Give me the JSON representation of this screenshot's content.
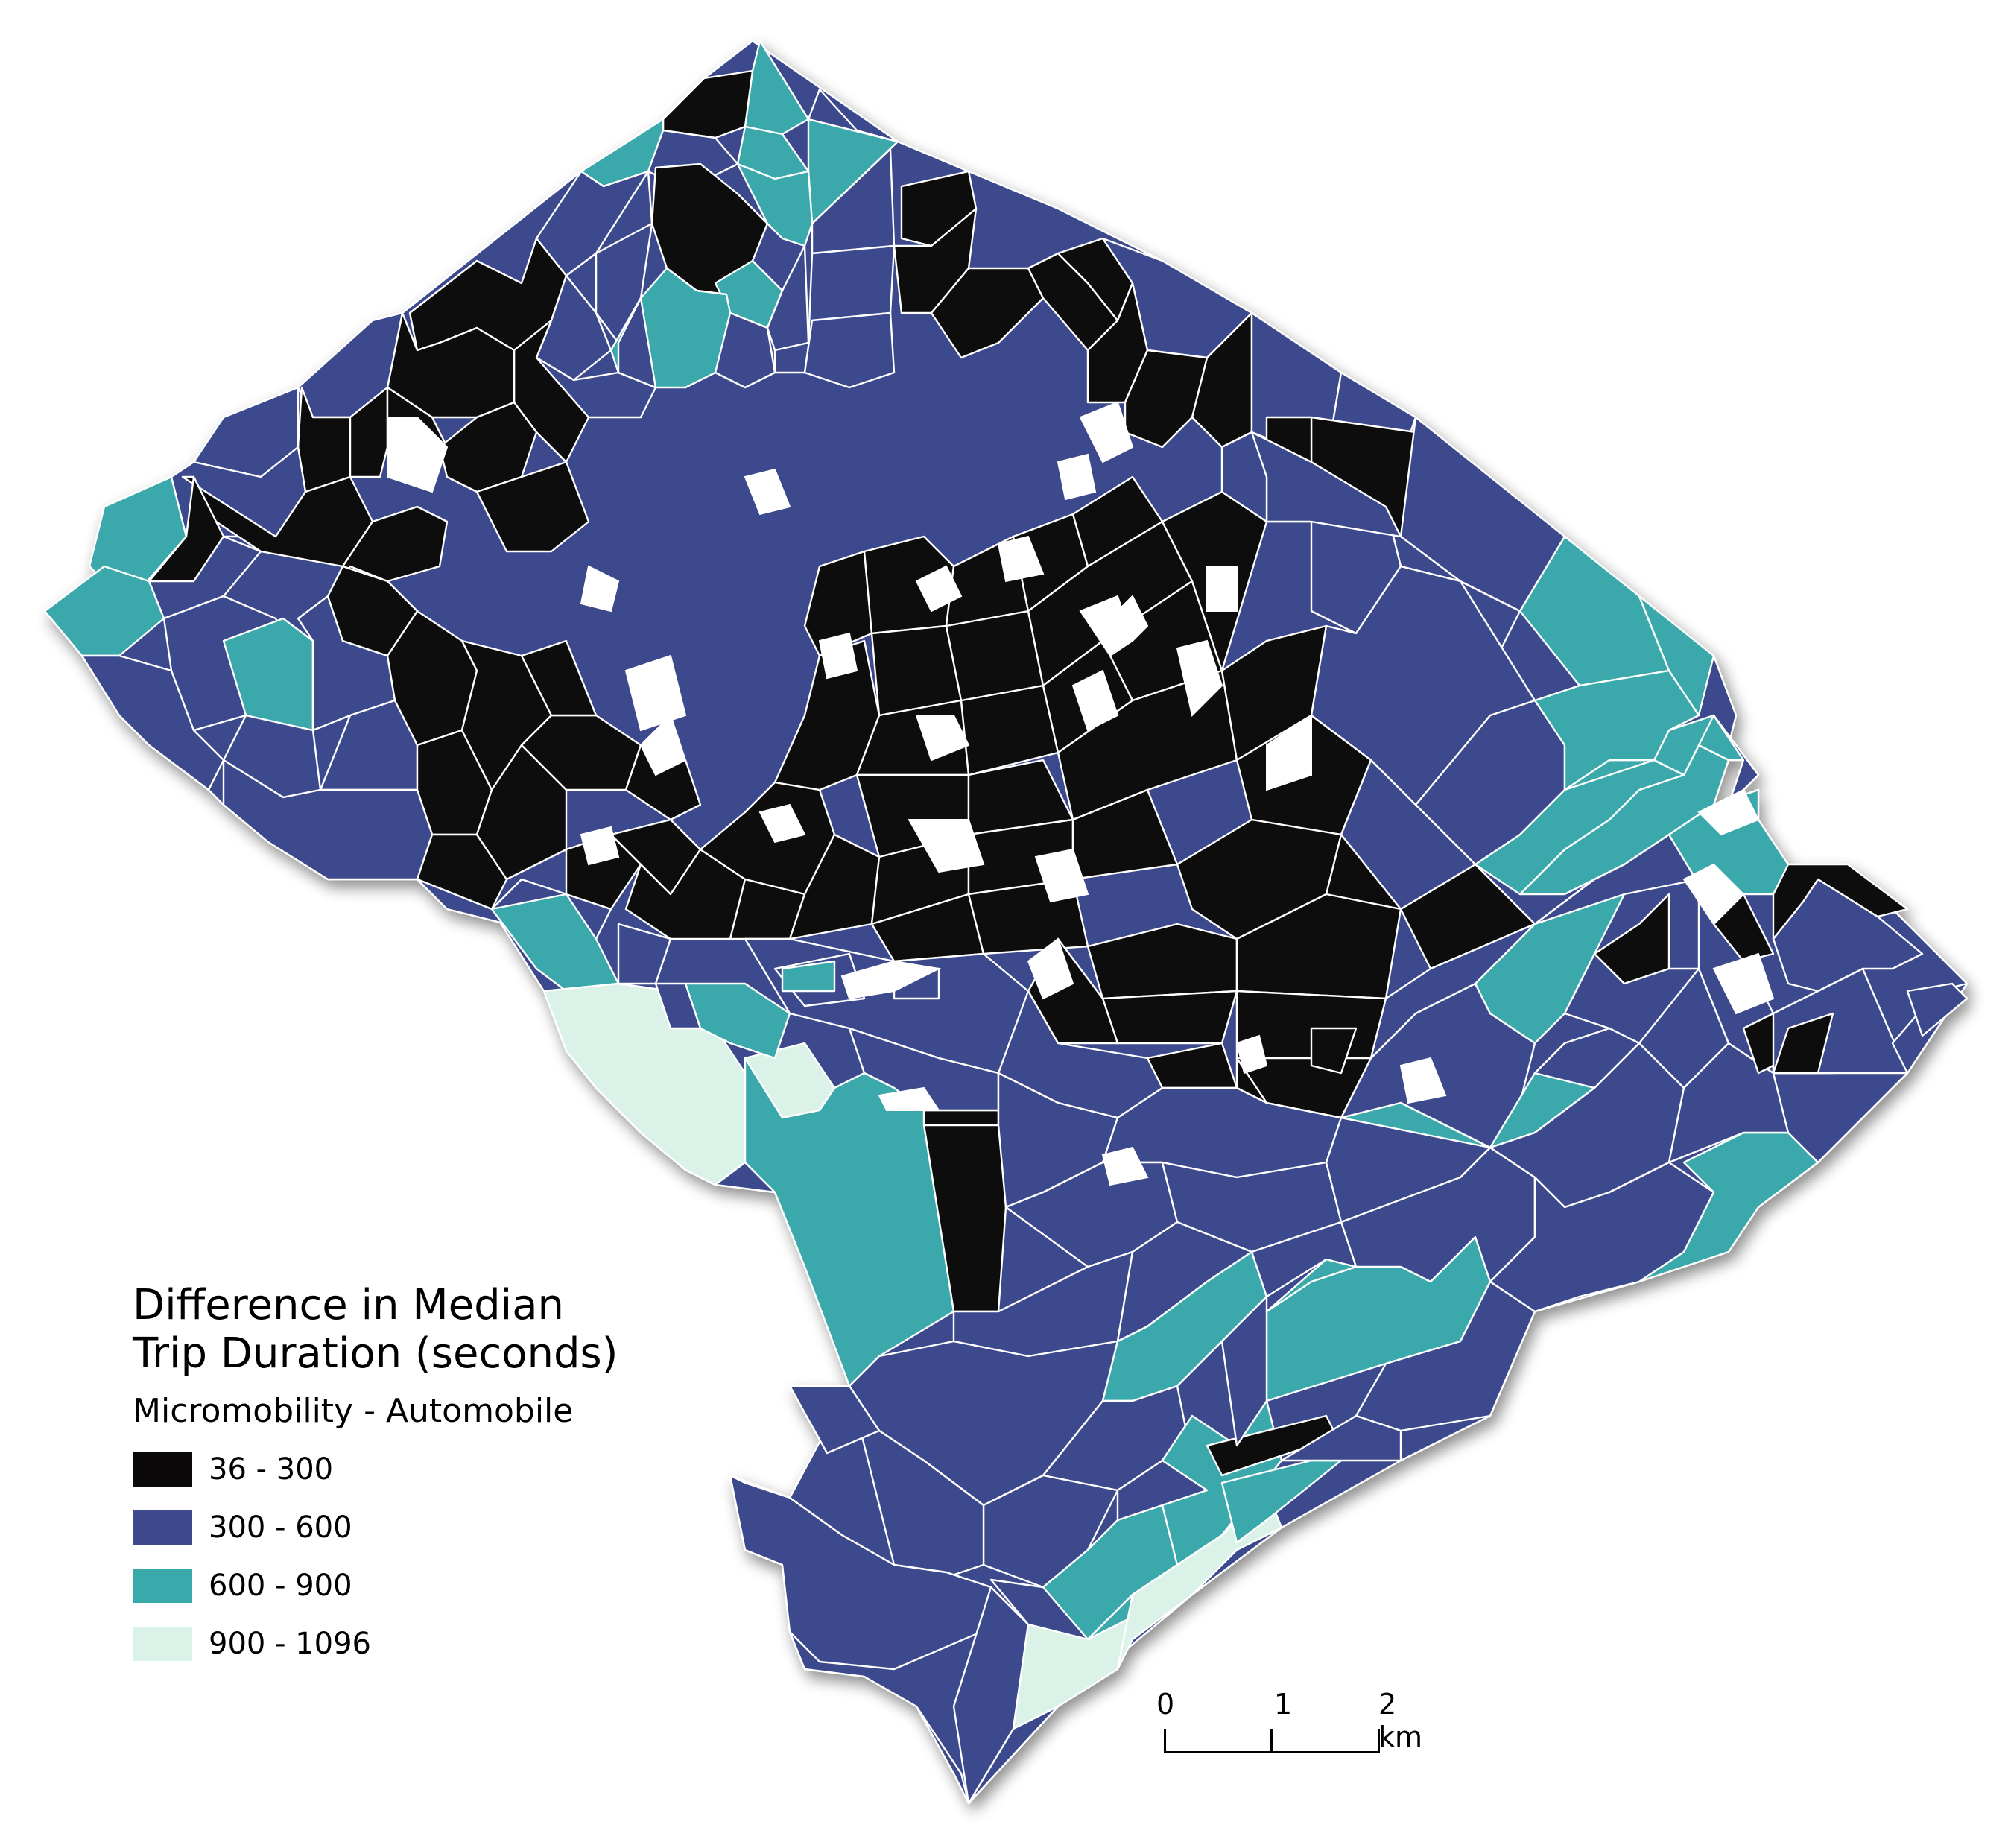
{
  "legend": {
    "title_line1": "Difference in Median",
    "title_line2": "Trip Duration (seconds)",
    "subtitle": "Micromobility - Automobile",
    "classes": [
      {
        "label": "36 - 300",
        "color": "#0b0909"
      },
      {
        "label": "300 - 600",
        "color": "#3e4a8d"
      },
      {
        "label": "600 - 900",
        "color": "#3aa9ab"
      },
      {
        "label": "900 - 1096",
        "color": "#daf2e7"
      }
    ]
  },
  "scalebar": {
    "labels": [
      "0",
      "1",
      "2 km"
    ]
  }
}
